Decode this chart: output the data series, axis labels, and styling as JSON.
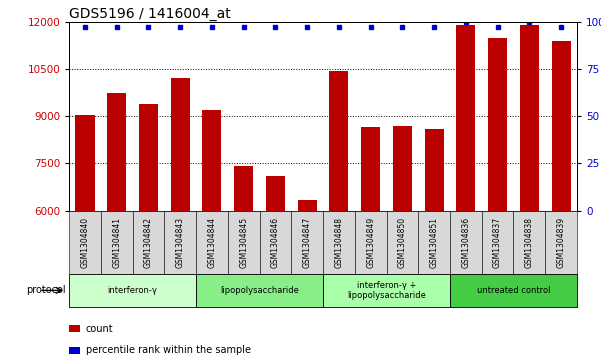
{
  "title": "GDS5196 / 1416004_at",
  "samples": [
    "GSM1304840",
    "GSM1304841",
    "GSM1304842",
    "GSM1304843",
    "GSM1304844",
    "GSM1304845",
    "GSM1304846",
    "GSM1304847",
    "GSM1304848",
    "GSM1304849",
    "GSM1304850",
    "GSM1304851",
    "GSM1304836",
    "GSM1304837",
    "GSM1304838",
    "GSM1304839"
  ],
  "counts": [
    9050,
    9750,
    9400,
    10200,
    9200,
    7400,
    7100,
    6350,
    10450,
    8650,
    8700,
    8600,
    11900,
    11500,
    11900,
    11400
  ],
  "percentile_ranks": [
    97,
    97,
    97,
    97,
    97,
    97,
    97,
    97,
    97,
    97,
    97,
    97,
    100,
    97,
    100,
    97
  ],
  "ylim_left": [
    6000,
    12000
  ],
  "ylim_right": [
    0,
    100
  ],
  "yticks_left": [
    6000,
    7500,
    9000,
    10500,
    12000
  ],
  "yticks_right": [
    0,
    25,
    50,
    75,
    100
  ],
  "bar_color": "#bb0000",
  "dot_color": "#0000cc",
  "background_color": "#ffffff",
  "groups": [
    {
      "label": "interferon-γ",
      "start": 0,
      "end": 4,
      "color": "#ccffcc"
    },
    {
      "label": "lipopolysaccharide",
      "start": 4,
      "end": 8,
      "color": "#88ee88"
    },
    {
      "label": "interferon-γ +\nlipopolysaccharide",
      "start": 8,
      "end": 12,
      "color": "#aaffaa"
    },
    {
      "label": "untreated control",
      "start": 12,
      "end": 16,
      "color": "#44cc44"
    }
  ],
  "legend_count_label": "count",
  "legend_pct_label": "percentile rank within the sample",
  "protocol_label": "protocol"
}
